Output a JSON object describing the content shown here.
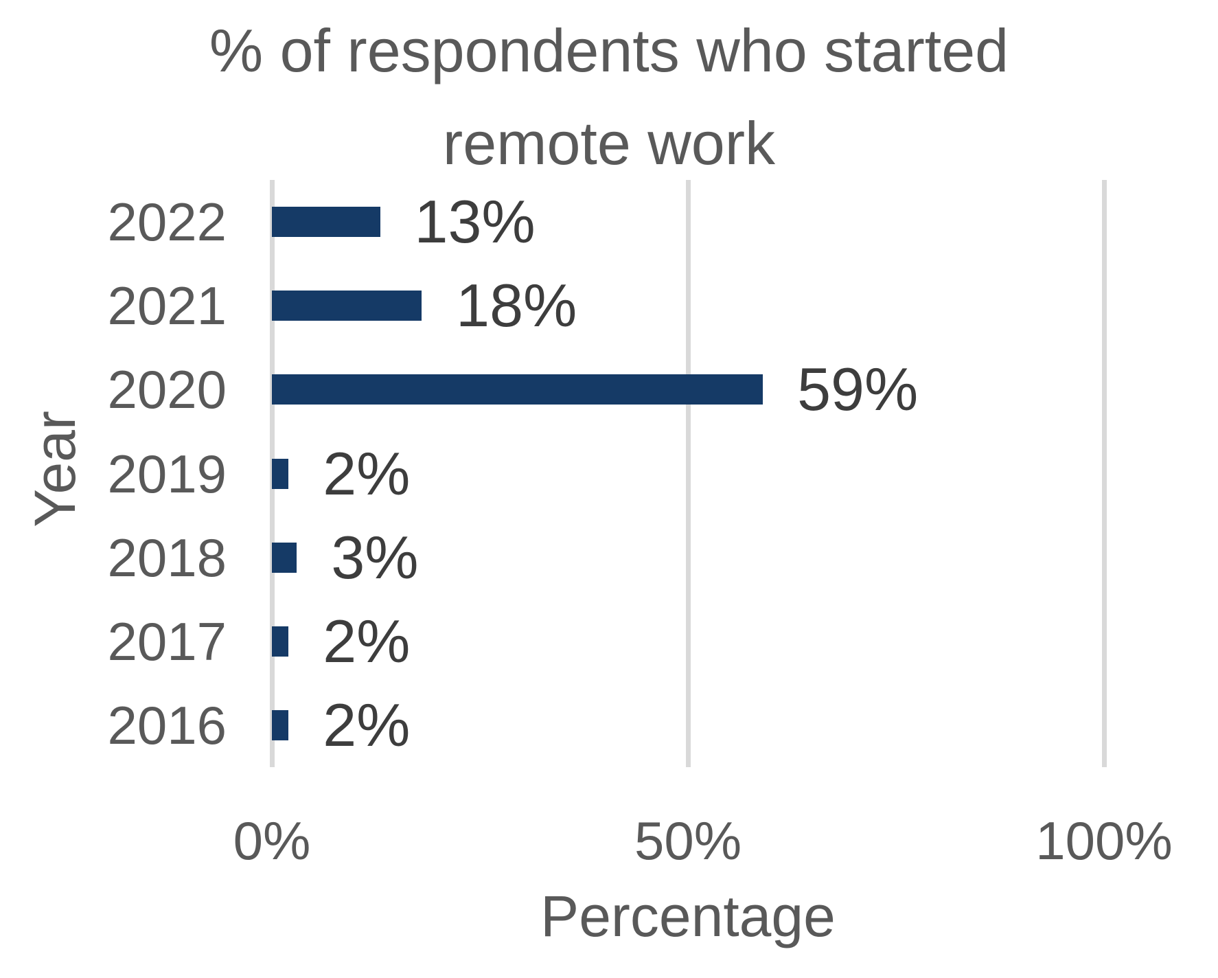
{
  "chart_data": {
    "type": "bar",
    "orientation": "horizontal",
    "title": "% of respondents who started remote work",
    "title_lines": [
      "% of respondents who started",
      "remote work"
    ],
    "categories": [
      "2022",
      "2021",
      "2020",
      "2019",
      "2018",
      "2017",
      "2016"
    ],
    "values": [
      13,
      18,
      59,
      2,
      3,
      2,
      2
    ],
    "data_labels": [
      "13%",
      "18%",
      "59%",
      "2%",
      "3%",
      "2%",
      "2%"
    ],
    "xlabel": "Percentage",
    "ylabel": "Year",
    "xlim": [
      0,
      100
    ],
    "x_ticks": [
      {
        "value": 0,
        "label": "0%"
      },
      {
        "value": 50,
        "label": "50%"
      },
      {
        "value": 100,
        "label": "100%"
      }
    ],
    "grid": "vertical gridlines at x ticks",
    "legend": "none",
    "colors": {
      "bar": "#153A66",
      "gridline": "#D9D9D9",
      "title_text": "#595959",
      "axis_text": "#595959",
      "data_label_text": "#3D3D3D"
    }
  }
}
